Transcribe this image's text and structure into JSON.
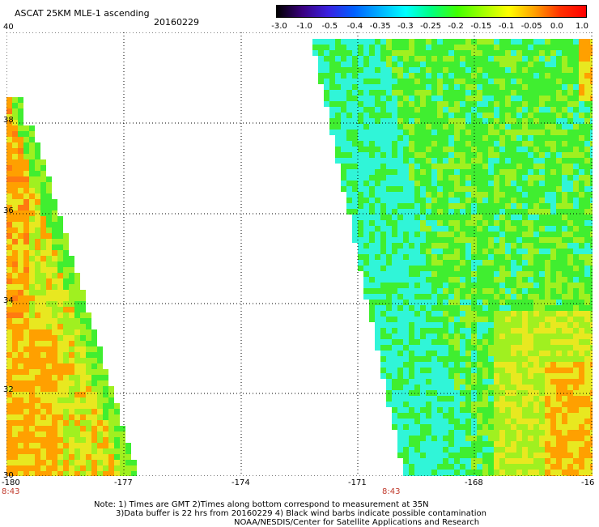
{
  "header": {
    "title": "ASCAT 25KM MLE-1 ascending",
    "date": "20160229"
  },
  "colorbar": {
    "tick_labels": [
      "-3.0",
      "-1.0",
      "-0.5",
      "-0.4",
      "-0.35",
      "-0.3",
      "-0.25",
      "-0.2",
      "-0.15",
      "-0.1",
      "-0.05",
      "0.0",
      "1.0"
    ],
    "gradient": [
      "#000000",
      "#3a0080",
      "#3a20e0",
      "#0060ff",
      "#00b0ff",
      "#00ffff",
      "#00ff80",
      "#40ff00",
      "#a0ff00",
      "#ffff00",
      "#ffa000",
      "#ff3000",
      "#ff0000"
    ]
  },
  "map": {
    "lat_labels": [
      "40",
      "38",
      "36",
      "34",
      "32",
      "30"
    ],
    "lon_labels": [
      "-180",
      "-177",
      "-174",
      "-171",
      "-168",
      "-16"
    ],
    "time_labels": [
      "8:43",
      "8:43"
    ],
    "colors": {
      "grid": "#000000",
      "cyan": "#30f5d8",
      "green": "#40ee30",
      "lime": "#a0f020",
      "yellow": "#e8e820",
      "orange": "#ffa000",
      "dark_orange": "#ff7a10"
    }
  },
  "notes": {
    "line1": "Note: 1) Times are GMT 2)Times along bottom correspond to measurement at 35N",
    "line2": "3)Data buffer is 22 hrs from 20160229 4) Black wind barbs indicate possible contamination",
    "line3": "NOAA/NESDIS/Center for Satellite Applications and Research"
  }
}
